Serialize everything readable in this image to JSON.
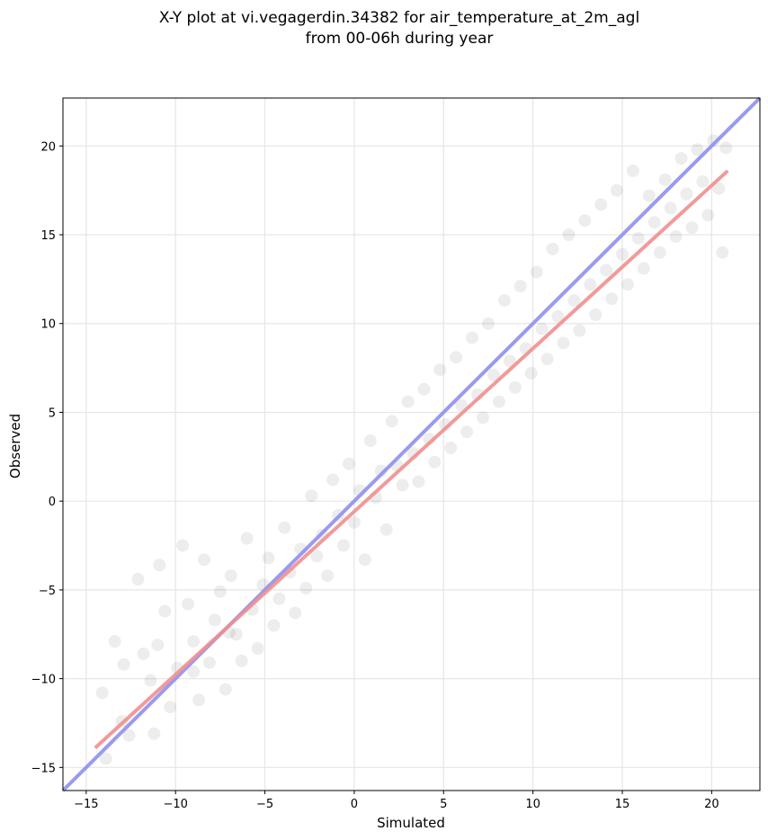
{
  "chart_data": {
    "type": "scatter",
    "title_line1": "X-Y plot at vi.vegagerdin.34382 for air_temperature_at_2m_agl",
    "title_line2": "from 00-06h during year",
    "xlabel": "Simulated",
    "ylabel": "Observed",
    "xlim": [
      -16.3,
      22.7
    ],
    "ylim": [
      -16.3,
      22.7
    ],
    "xticks": [
      -15,
      -10,
      -5,
      0,
      5,
      10,
      15,
      20
    ],
    "yticks": [
      -15,
      -10,
      -5,
      0,
      5,
      10,
      15,
      20
    ],
    "xtick_labels": [
      "−15",
      "−10",
      "−5",
      "0",
      "5",
      "10",
      "15",
      "20"
    ],
    "ytick_labels": [
      "−15",
      "−10",
      "−5",
      "0",
      "5",
      "10",
      "15",
      "20"
    ],
    "grid": true,
    "reference_line": {
      "name": "1:1",
      "slope": 1.0,
      "intercept": 0.0,
      "color": "#8f8ff0"
    },
    "fit_line": {
      "x": [
        -14.5,
        20.9
      ],
      "y": [
        -13.9,
        18.6
      ],
      "color": "#f08f8f"
    },
    "scatter_color": "#000000",
    "scatter_alpha": 0.07,
    "scatter_points": [
      [
        -14.1,
        -10.8
      ],
      [
        -13.9,
        -14.5
      ],
      [
        -13.4,
        -7.9
      ],
      [
        -12.9,
        -9.2
      ],
      [
        -12.6,
        -13.2
      ],
      [
        -12.1,
        -4.4
      ],
      [
        -11.8,
        -8.6
      ],
      [
        -11.4,
        -10.1
      ],
      [
        -11.2,
        -13.1
      ],
      [
        -10.9,
        -3.6
      ],
      [
        -10.6,
        -6.2
      ],
      [
        -10.3,
        -11.6
      ],
      [
        -9.9,
        -9.4
      ],
      [
        -9.6,
        -2.5
      ],
      [
        -9.3,
        -5.8
      ],
      [
        -9.0,
        -7.9
      ],
      [
        -8.7,
        -11.2
      ],
      [
        -8.4,
        -3.3
      ],
      [
        -8.1,
        -9.1
      ],
      [
        -7.8,
        -6.7
      ],
      [
        -7.5,
        -5.1
      ],
      [
        -7.2,
        -10.6
      ],
      [
        -6.9,
        -4.2
      ],
      [
        -6.6,
        -7.5
      ],
      [
        -6.3,
        -9.0
      ],
      [
        -6.0,
        -2.1
      ],
      [
        -5.7,
        -6.1
      ],
      [
        -5.4,
        -8.3
      ],
      [
        -5.1,
        -4.7
      ],
      [
        -4.8,
        -3.2
      ],
      [
        -4.5,
        -7.0
      ],
      [
        -4.2,
        -5.5
      ],
      [
        -3.9,
        -1.5
      ],
      [
        -3.6,
        -4.0
      ],
      [
        -3.3,
        -6.3
      ],
      [
        -3.0,
        -2.7
      ],
      [
        -2.7,
        -4.9
      ],
      [
        -2.4,
        0.3
      ],
      [
        -2.1,
        -3.1
      ],
      [
        -1.8,
        -1.9
      ],
      [
        -1.5,
        -4.2
      ],
      [
        -1.2,
        1.2
      ],
      [
        -0.9,
        -0.8
      ],
      [
        -0.6,
        -2.5
      ],
      [
        -0.3,
        2.1
      ],
      [
        0.0,
        -1.2
      ],
      [
        0.3,
        0.6
      ],
      [
        0.6,
        -3.3
      ],
      [
        0.9,
        3.4
      ],
      [
        1.2,
        0.2
      ],
      [
        1.5,
        1.7
      ],
      [
        1.8,
        -1.6
      ],
      [
        2.1,
        4.5
      ],
      [
        2.4,
        2.0
      ],
      [
        2.7,
        0.9
      ],
      [
        3.0,
        5.6
      ],
      [
        3.3,
        2.7
      ],
      [
        3.6,
        1.1
      ],
      [
        3.9,
        6.3
      ],
      [
        4.2,
        3.5
      ],
      [
        4.5,
        2.2
      ],
      [
        4.8,
        7.4
      ],
      [
        5.1,
        4.3
      ],
      [
        5.4,
        3.0
      ],
      [
        5.7,
        8.1
      ],
      [
        6.0,
        5.4
      ],
      [
        6.3,
        3.9
      ],
      [
        6.6,
        9.2
      ],
      [
        6.9,
        6.0
      ],
      [
        7.2,
        4.7
      ],
      [
        7.5,
        10.0
      ],
      [
        7.8,
        7.1
      ],
      [
        8.1,
        5.6
      ],
      [
        8.4,
        11.3
      ],
      [
        8.7,
        7.9
      ],
      [
        9.0,
        6.4
      ],
      [
        9.3,
        12.1
      ],
      [
        9.6,
        8.6
      ],
      [
        9.9,
        7.2
      ],
      [
        10.2,
        12.9
      ],
      [
        10.5,
        9.7
      ],
      [
        10.8,
        8.0
      ],
      [
        11.1,
        14.2
      ],
      [
        11.4,
        10.4
      ],
      [
        11.7,
        8.9
      ],
      [
        12.0,
        15.0
      ],
      [
        12.3,
        11.3
      ],
      [
        12.6,
        9.6
      ],
      [
        12.9,
        15.8
      ],
      [
        13.2,
        12.2
      ],
      [
        13.5,
        10.5
      ],
      [
        13.8,
        16.7
      ],
      [
        14.1,
        13.0
      ],
      [
        14.4,
        11.4
      ],
      [
        14.7,
        17.5
      ],
      [
        15.0,
        13.9
      ],
      [
        15.3,
        12.2
      ],
      [
        15.6,
        18.6
      ],
      [
        15.9,
        14.8
      ],
      [
        16.2,
        13.1
      ],
      [
        16.5,
        17.2
      ],
      [
        16.8,
        15.7
      ],
      [
        17.1,
        14.0
      ],
      [
        17.4,
        18.1
      ],
      [
        17.7,
        16.5
      ],
      [
        18.0,
        14.9
      ],
      [
        18.3,
        19.3
      ],
      [
        18.6,
        17.3
      ],
      [
        18.9,
        15.4
      ],
      [
        19.2,
        19.8
      ],
      [
        19.5,
        18.0
      ],
      [
        19.8,
        16.1
      ],
      [
        20.1,
        20.3
      ],
      [
        20.4,
        17.6
      ],
      [
        20.6,
        14.0
      ],
      [
        20.8,
        19.9
      ],
      [
        -13.0,
        -12.4
      ],
      [
        -11.0,
        -8.1
      ],
      [
        -9.0,
        -9.6
      ],
      [
        -7.0,
        -7.4
      ]
    ]
  }
}
